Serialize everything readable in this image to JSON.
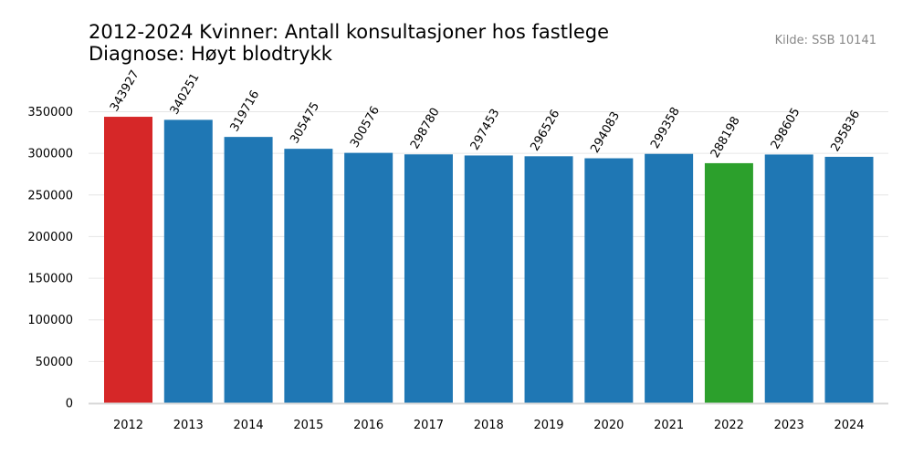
{
  "chart_data": {
    "type": "bar",
    "title_line1": "2012-2024 Kvinner: Antall konsultasjoner hos fastlege",
    "title_line2": "Diagnose: Høyt blodtrykk",
    "source": "Kilde: SSB 10141",
    "categories": [
      "2012",
      "2013",
      "2014",
      "2015",
      "2016",
      "2017",
      "2018",
      "2019",
      "2020",
      "2021",
      "2022",
      "2023",
      "2024"
    ],
    "values": [
      343927,
      340251,
      319716,
      305475,
      300576,
      298780,
      297453,
      296526,
      294083,
      299358,
      288198,
      298605,
      295836
    ],
    "colors": [
      "#d62728",
      "#1f77b4",
      "#1f77b4",
      "#1f77b4",
      "#1f77b4",
      "#1f77b4",
      "#1f77b4",
      "#1f77b4",
      "#1f77b4",
      "#1f77b4",
      "#2ca02c",
      "#1f77b4",
      "#1f77b4"
    ],
    "yticks": [
      0,
      50000,
      100000,
      150000,
      200000,
      250000,
      300000,
      350000
    ],
    "ylim": [
      0,
      350000
    ],
    "grid": true,
    "xlabel": "",
    "ylabel": ""
  }
}
